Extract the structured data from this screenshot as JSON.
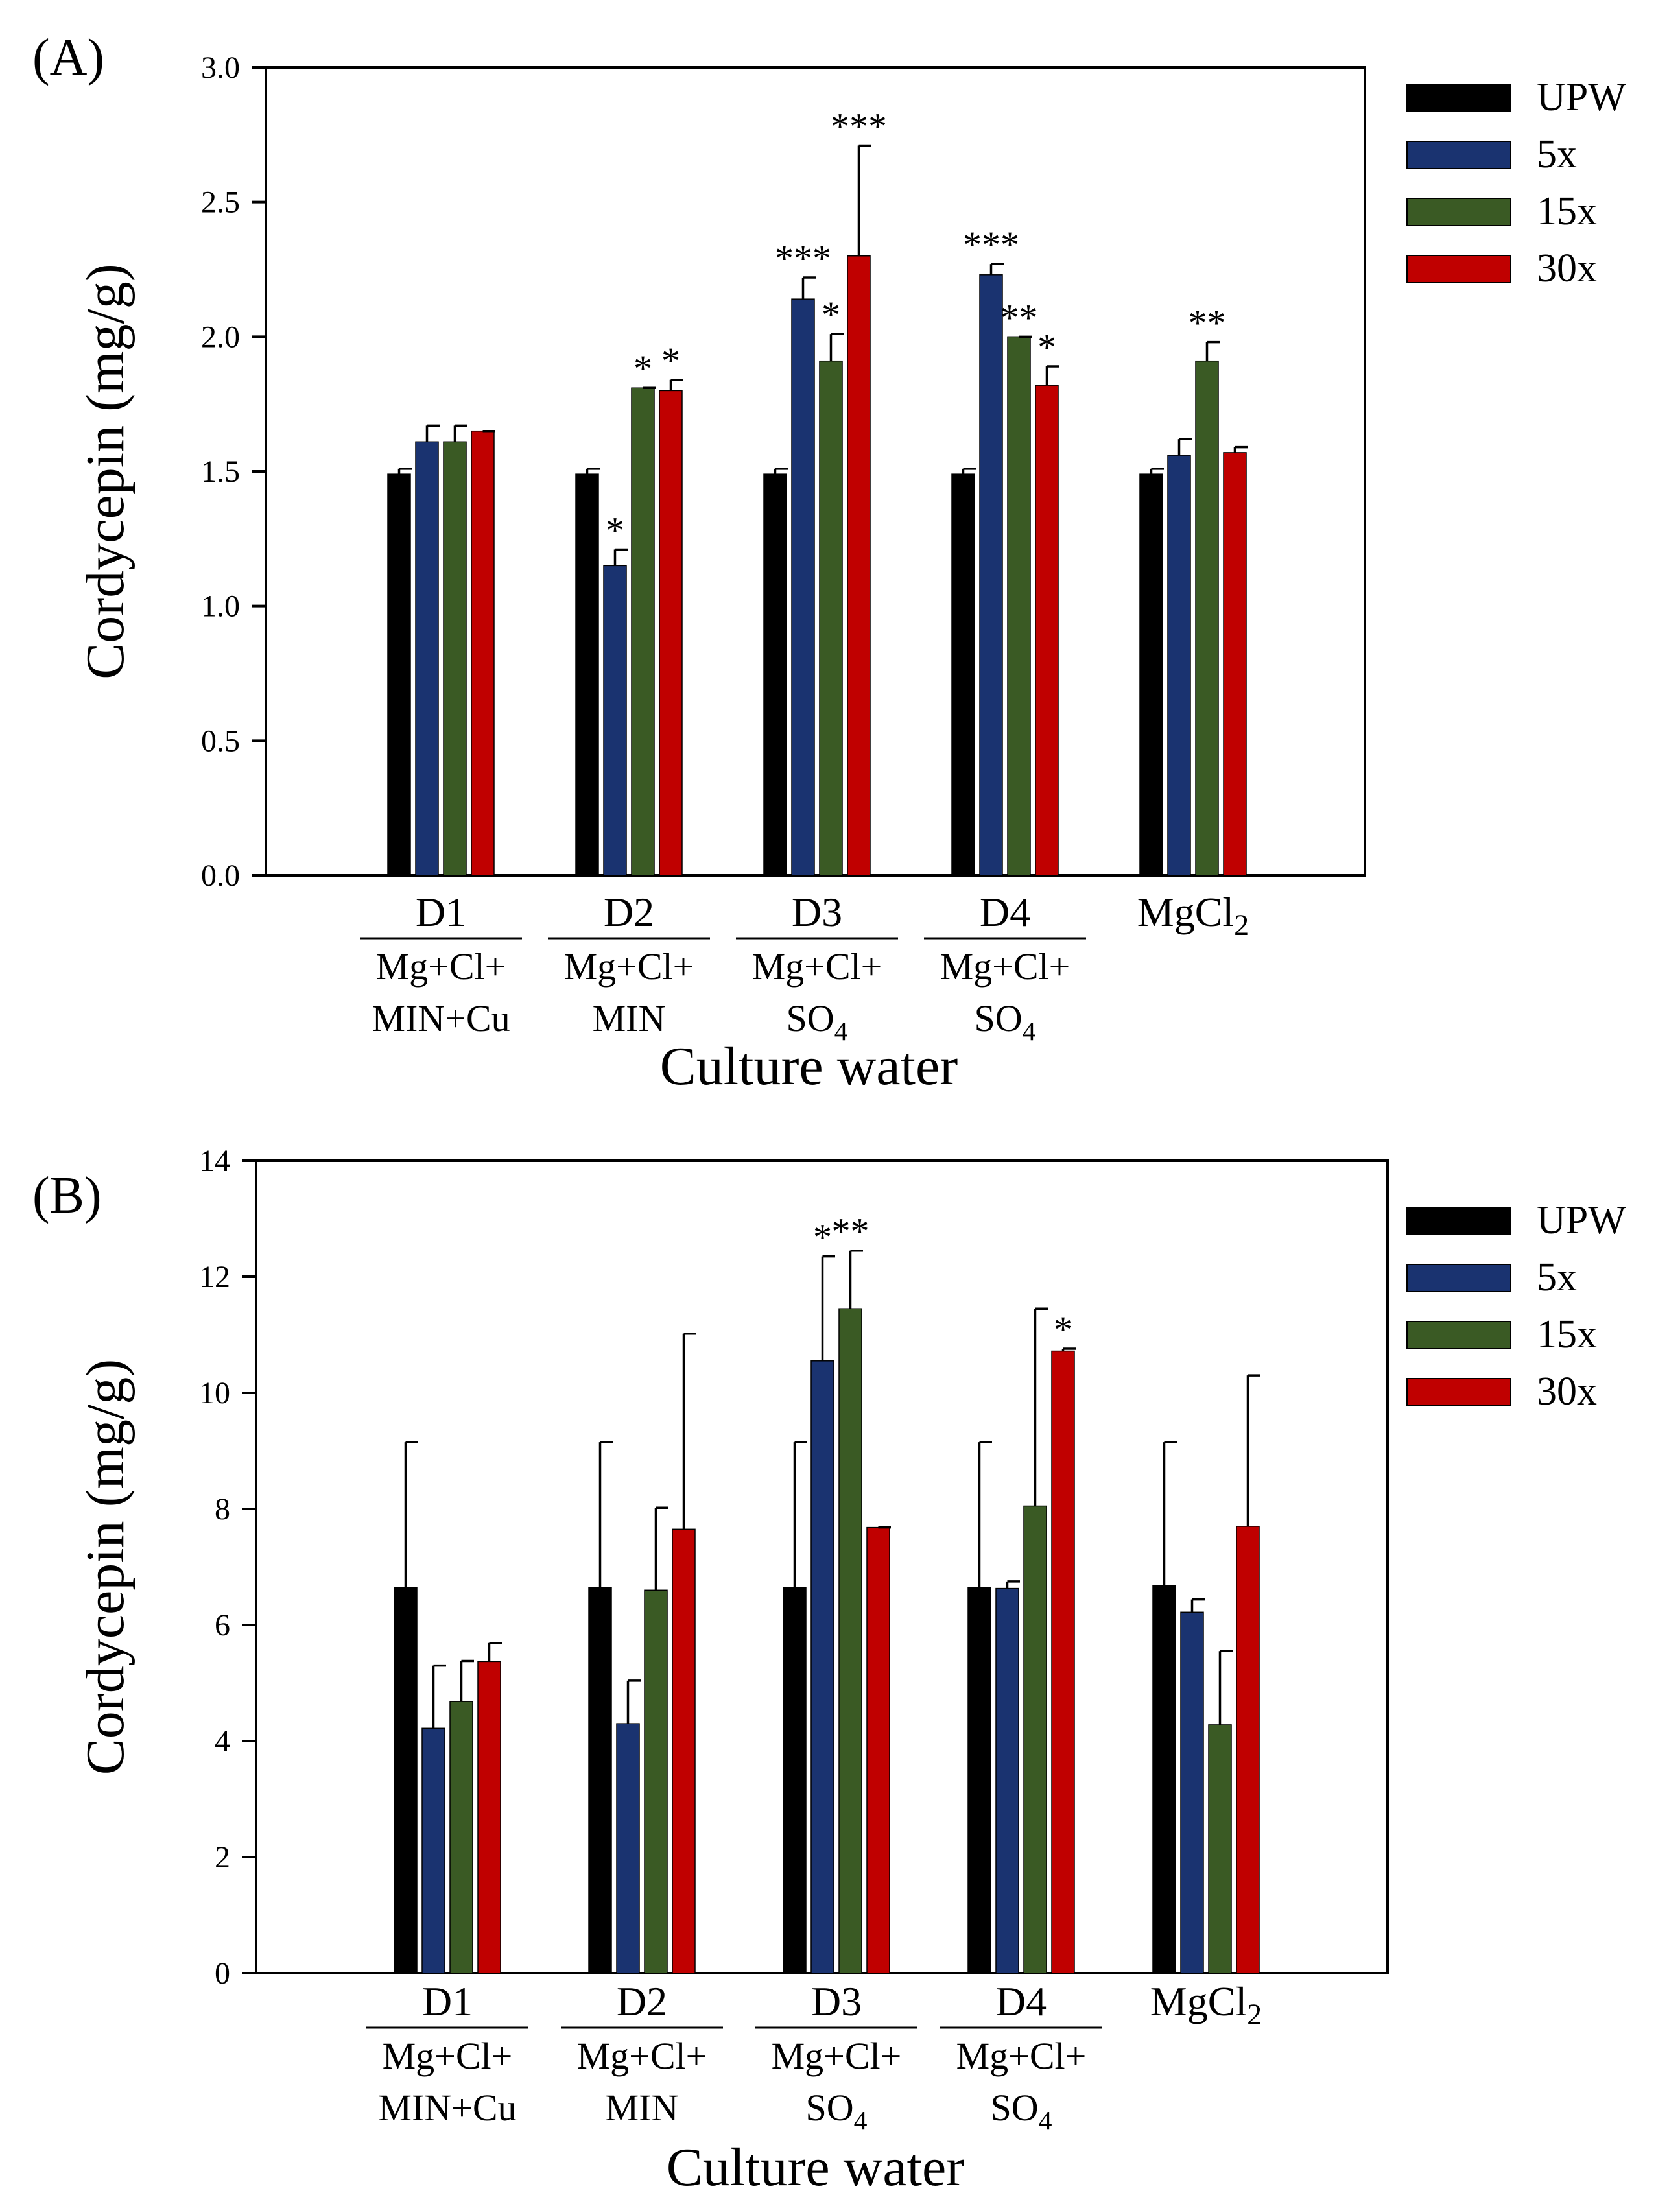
{
  "chart_data": [
    {
      "type": "bar",
      "panel_label": "(A)",
      "ylabel": "Cordycepin (mg/g)",
      "xlabel": "Culture water",
      "ylim": [
        0,
        3.0
      ],
      "yticks": [
        "0.0",
        "0.5",
        "1.0",
        "1.5",
        "2.0",
        "2.5",
        "3.0"
      ],
      "groups": [
        {
          "name": "D1",
          "sub1": "Mg+Cl+",
          "sub2": "MIN+Cu",
          "sub2_subscript": ""
        },
        {
          "name": "D2",
          "sub1": "Mg+Cl+",
          "sub2": "MIN",
          "sub2_subscript": ""
        },
        {
          "name": "D3",
          "sub1": "Mg+Cl+",
          "sub2": "SO",
          "sub2_subscript": "4"
        },
        {
          "name": "D4",
          "sub1": "Mg+Cl+",
          "sub2": "SO",
          "sub2_subscript": "4"
        },
        {
          "name": "MgCl",
          "name_subscript": "2"
        }
      ],
      "series": [
        {
          "name": "UPW",
          "color": "#000000",
          "values": [
            1.49,
            1.49,
            1.49,
            1.49,
            1.49
          ],
          "errors": [
            0.02,
            0.02,
            0.02,
            0.02,
            0.02
          ],
          "stars": [
            "",
            "",
            "",
            "",
            ""
          ]
        },
        {
          "name": "5x",
          "color": "#1a3370",
          "values": [
            1.61,
            1.15,
            2.14,
            2.23,
            1.56
          ],
          "errors": [
            0.06,
            0.06,
            0.08,
            0.04,
            0.06
          ],
          "stars": [
            "",
            "*",
            "***",
            "***",
            ""
          ]
        },
        {
          "name": "15x",
          "color": "#3a5a24",
          "values": [
            1.61,
            1.81,
            1.91,
            2.0,
            1.91
          ],
          "errors": [
            0.06,
            0.0,
            0.1,
            0.0,
            0.07
          ],
          "stars": [
            "",
            "*",
            "*",
            "**",
            "**"
          ]
        },
        {
          "name": "30x",
          "color": "#c00000",
          "values": [
            1.65,
            1.8,
            2.3,
            1.82,
            1.57
          ],
          "errors": [
            0.0,
            0.04,
            0.41,
            0.07,
            0.02
          ],
          "stars": [
            "",
            "*",
            "***",
            "*",
            ""
          ]
        }
      ]
    },
    {
      "type": "bar",
      "panel_label": "(B)",
      "ylabel": "Cordycepin (mg/g)",
      "xlabel": "Culture water",
      "ylim": [
        0,
        14
      ],
      "yticks": [
        "0",
        "2",
        "4",
        "6",
        "8",
        "10",
        "12",
        "14"
      ],
      "groups": [
        {
          "name": "D1",
          "sub1": "Mg+Cl+",
          "sub2": "MIN+Cu",
          "sub2_subscript": ""
        },
        {
          "name": "D2",
          "sub1": "Mg+Cl+",
          "sub2": "MIN",
          "sub2_subscript": ""
        },
        {
          "name": "D3",
          "sub1": "Mg+Cl+",
          "sub2": "SO",
          "sub2_subscript": "4"
        },
        {
          "name": "D4",
          "sub1": "Mg+Cl+",
          "sub2": "SO",
          "sub2_subscript": "4"
        },
        {
          "name": "MgCl",
          "name_subscript": "2"
        }
      ],
      "series": [
        {
          "name": "UPW",
          "color": "#000000",
          "values": [
            6.65,
            6.65,
            6.65,
            6.65,
            6.68
          ],
          "errors": [
            2.5,
            2.5,
            2.5,
            2.5,
            2.47
          ],
          "stars": [
            "",
            "",
            "",
            "",
            ""
          ]
        },
        {
          "name": "5x",
          "color": "#1a3370",
          "values": [
            4.22,
            4.3,
            10.55,
            6.63,
            6.22
          ],
          "errors": [
            1.08,
            0.74,
            1.8,
            0.12,
            0.22
          ],
          "stars": [
            "",
            "",
            "*",
            "",
            ""
          ]
        },
        {
          "name": "15x",
          "color": "#3a5a24",
          "values": [
            4.68,
            6.6,
            11.45,
            8.05,
            4.28
          ],
          "errors": [
            0.7,
            1.42,
            1.0,
            3.4,
            1.27
          ],
          "stars": [
            "",
            "",
            "**",
            "",
            ""
          ]
        },
        {
          "name": "30x",
          "color": "#c00000",
          "values": [
            5.37,
            7.65,
            7.68,
            10.72,
            7.7
          ],
          "errors": [
            0.32,
            3.37,
            0.0,
            0.04,
            2.6
          ],
          "stars": [
            "",
            "",
            "",
            "*",
            ""
          ]
        }
      ]
    }
  ]
}
